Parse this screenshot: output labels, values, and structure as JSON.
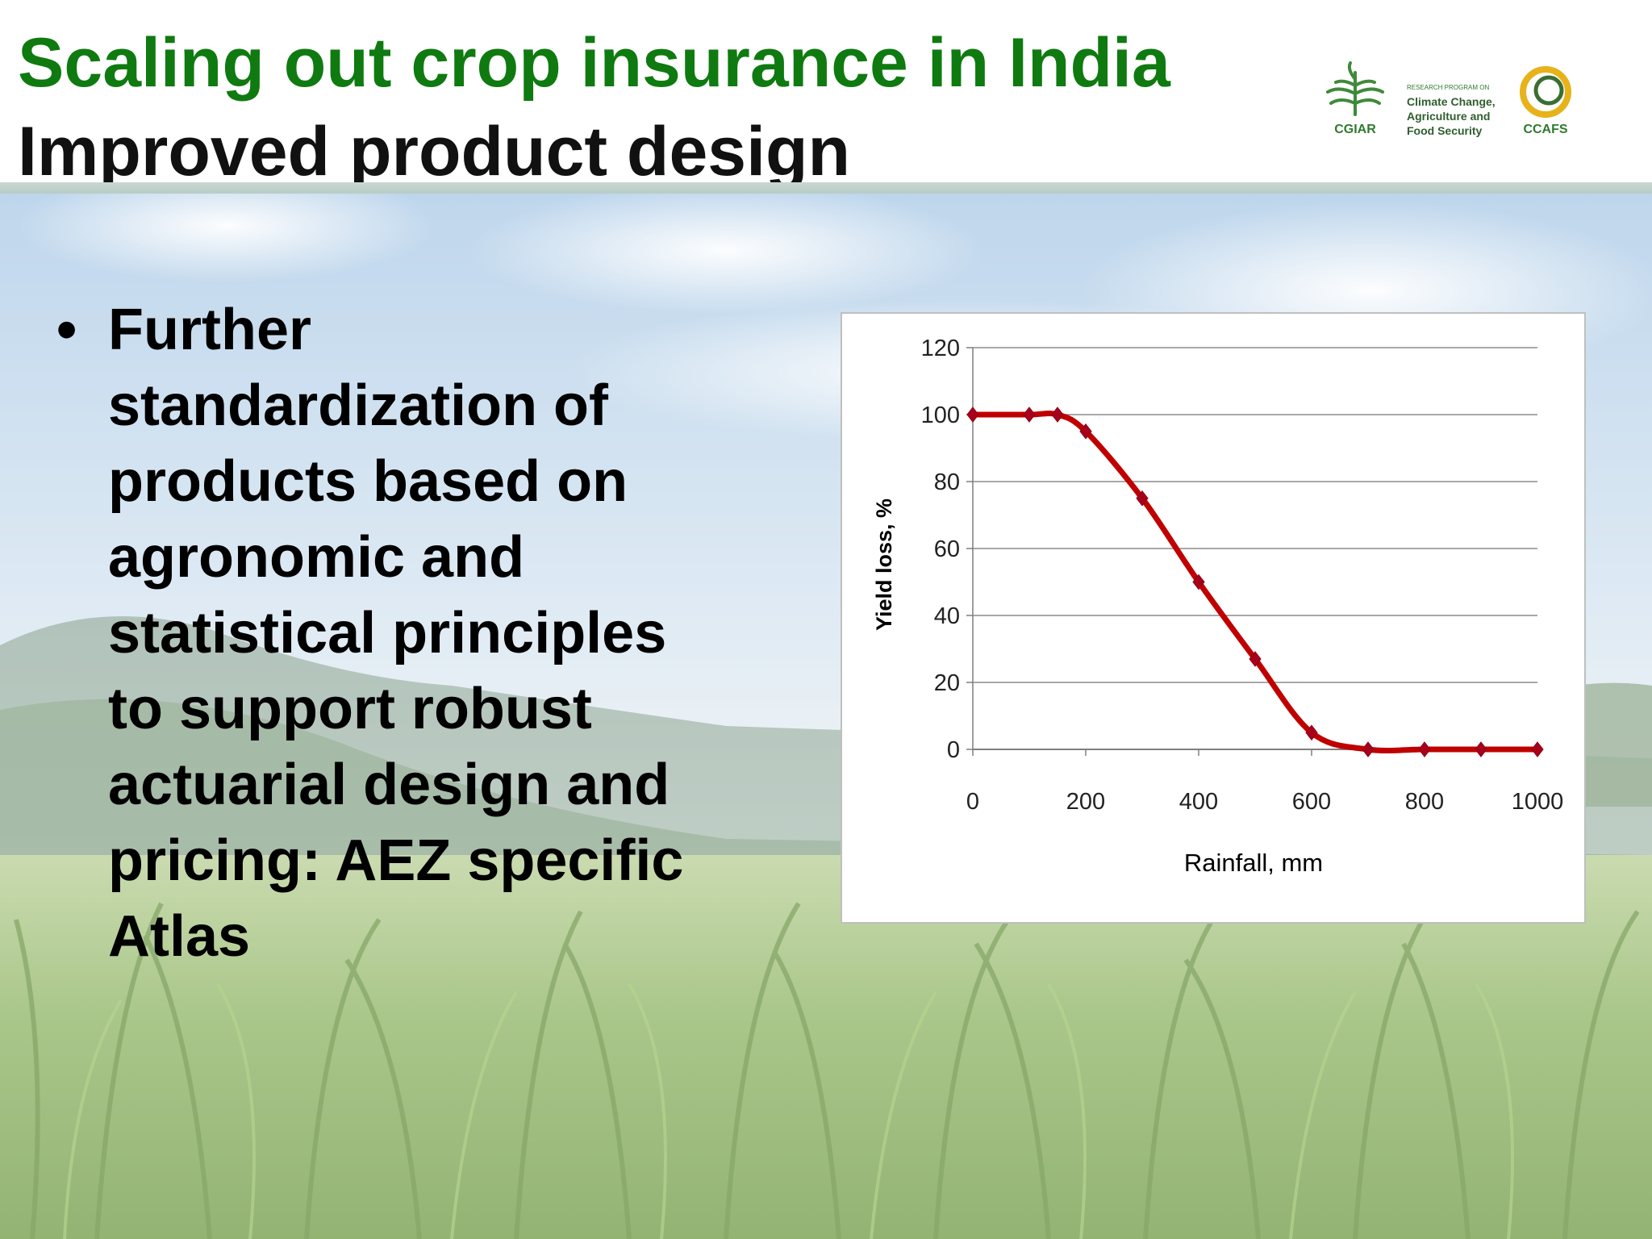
{
  "header": {
    "title": "Scaling out crop insurance in India",
    "subtitle": "Improved product design"
  },
  "logos": {
    "cgiar": "CGIAR",
    "program_small": "RESEARCH PROGRAM ON",
    "program_lines": [
      "Climate Change,",
      "Agriculture and",
      "Food Security"
    ],
    "ccafs": "CCAFS"
  },
  "bullet": {
    "lines": [
      "Further",
      "standardization of",
      "products based on",
      "agronomic and",
      "statistical principles",
      "to support robust",
      "actuarial design and",
      "pricing: AEZ specific",
      "Atlas"
    ]
  },
  "chart_data": {
    "type": "line",
    "xlabel": "Rainfall, mm",
    "ylabel": "Yield loss, %",
    "xlim": [
      0,
      1000
    ],
    "ylim": [
      0,
      120
    ],
    "xticks": [
      0,
      200,
      400,
      600,
      800,
      1000
    ],
    "yticks": [
      0,
      20,
      40,
      60,
      80,
      100,
      120
    ],
    "grid": "horizontal",
    "series": [
      {
        "color": "#c00000",
        "x": [
          0,
          100,
          150,
          200,
          300,
          400,
          500,
          600,
          700,
          800,
          900,
          1000
        ],
        "y": [
          100,
          100,
          100,
          95,
          75,
          50,
          27,
          5,
          0,
          0,
          0,
          0
        ]
      }
    ]
  }
}
